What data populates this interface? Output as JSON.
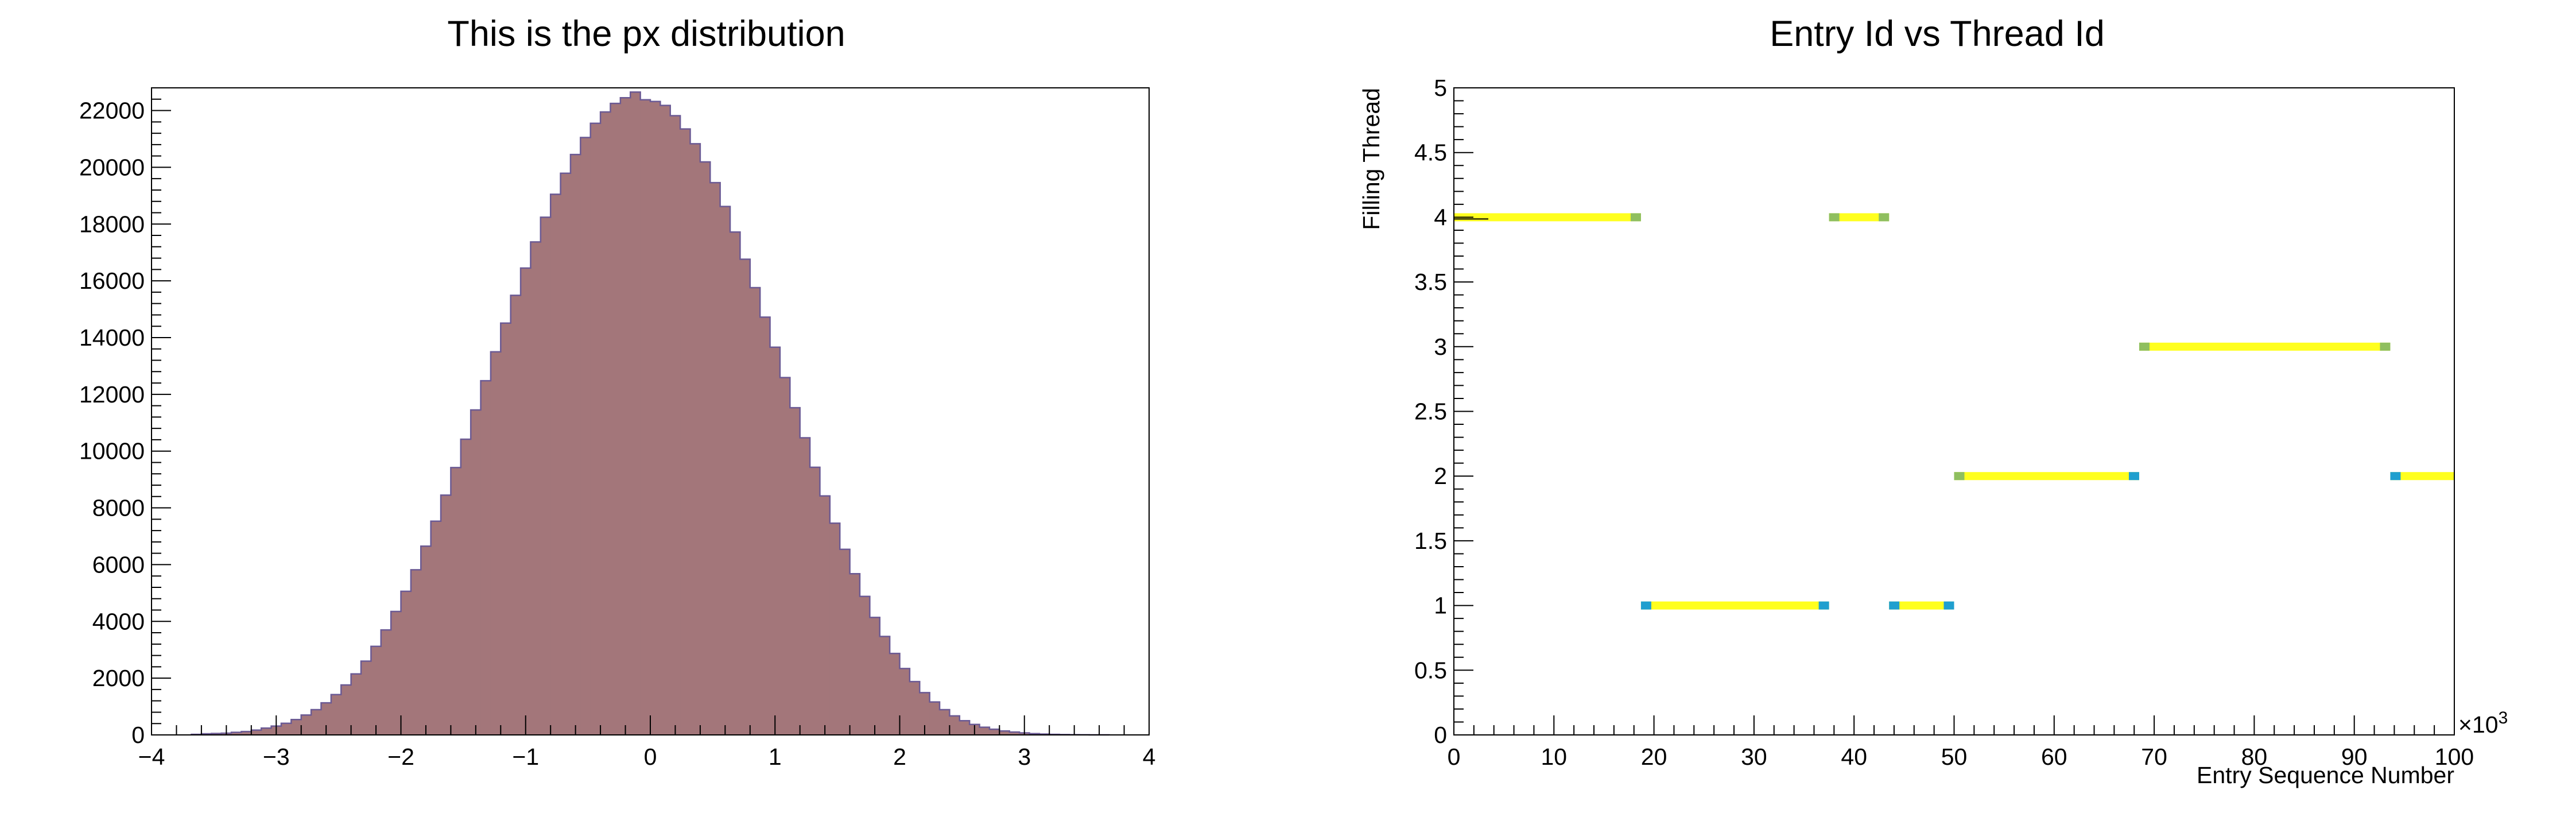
{
  "charts": [
    {
      "title": "This is the px distribution",
      "xticks": [
        "−4",
        "−3",
        "−2",
        "−1",
        "0",
        "1",
        "2",
        "3",
        "4"
      ],
      "yticks": [
        "0",
        "2000",
        "4000",
        "6000",
        "8000",
        "10000",
        "12000",
        "14000",
        "16000",
        "18000",
        "20000",
        "22000"
      ]
    },
    {
      "title": "Entry Id vs Thread Id",
      "xlabel": "Entry Sequence Number",
      "ylabel": "Filling Thread",
      "xticks": [
        "0",
        "10",
        "20",
        "30",
        "40",
        "50",
        "60",
        "70",
        "80",
        "90",
        "100"
      ],
      "yticks": [
        "0",
        "0.5",
        "1",
        "1.5",
        "2",
        "2.5",
        "3",
        "3.5",
        "4",
        "4.5",
        "5"
      ],
      "xexp_base": "×10",
      "xexp_power": "3"
    }
  ],
  "colors": {
    "hist_fill": "#a3767a",
    "hist_line": "#6b5a94",
    "seg_fill": "#ffff1f",
    "seg_start_blue": "#1f9fcf",
    "seg_end_green": "#8fbf5f"
  },
  "chart_data": [
    {
      "type": "bar",
      "title": "This is the px distribution",
      "xlabel": "",
      "ylabel": "",
      "xlim": [
        -4,
        4
      ],
      "ylim": [
        0,
        22800
      ],
      "bins": 100,
      "x": [
        -3.68,
        -3.6,
        -3.52,
        -3.44,
        -3.36,
        -3.28,
        -3.2,
        -3.12,
        -3.04,
        -2.96,
        -2.88,
        -2.8,
        -2.72,
        -2.64,
        -2.56,
        -2.48,
        -2.4,
        -2.32,
        -2.24,
        -2.16,
        -2.08,
        -2.0,
        -1.92,
        -1.84,
        -1.76,
        -1.68,
        -1.6,
        -1.52,
        -1.44,
        -1.36,
        -1.28,
        -1.2,
        -1.12,
        -1.04,
        -0.96,
        -0.88,
        -0.8,
        -0.72,
        -0.64,
        -0.56,
        -0.48,
        -0.4,
        -0.32,
        -0.24,
        -0.16,
        -0.08,
        0.0,
        0.08,
        0.16,
        0.24,
        0.32,
        0.4,
        0.48,
        0.56,
        0.64,
        0.72,
        0.8,
        0.88,
        0.96,
        1.04,
        1.12,
        1.2,
        1.28,
        1.36,
        1.44,
        1.52,
        1.6,
        1.68,
        1.76,
        1.84,
        1.92,
        2.0,
        2.08,
        2.16,
        2.24,
        2.32,
        2.4,
        2.48,
        2.56,
        2.64,
        2.72,
        2.8,
        2.88,
        2.96,
        3.04,
        3.12,
        3.2,
        3.28,
        3.36,
        3.44,
        3.52,
        3.6
      ],
      "values": [
        20,
        40,
        50,
        60,
        90,
        120,
        170,
        240,
        310,
        410,
        540,
        700,
        890,
        1130,
        1420,
        1760,
        2150,
        2600,
        3120,
        3700,
        4350,
        5060,
        5820,
        6650,
        7530,
        8450,
        9420,
        10420,
        11450,
        12480,
        13500,
        14510,
        15490,
        16450,
        17370,
        18240,
        19050,
        19790,
        20450,
        21050,
        21550,
        21950,
        22250,
        22450,
        22650,
        22380,
        22320,
        22180,
        21820,
        21350,
        20830,
        20190,
        19460,
        18620,
        17720,
        16760,
        15760,
        14720,
        13660,
        12590,
        11530,
        10470,
        9430,
        8420,
        7460,
        6540,
        5680,
        4880,
        4140,
        3470,
        2870,
        2340,
        1880,
        1490,
        1160,
        890,
        670,
        500,
        370,
        270,
        200,
        140,
        100,
        70,
        45,
        30,
        20,
        12,
        8,
        5,
        3,
        2
      ]
    },
    {
      "type": "scatter",
      "title": "Entry Id vs Thread Id",
      "xlabel": "Entry Sequence Number",
      "ylabel": "Filling Thread",
      "xlim": [
        0,
        100000
      ],
      "ylim": [
        0,
        5
      ],
      "x_multiplier": "×10^3",
      "series": [
        {
          "thread": 4,
          "x_start": 0,
          "x_end": 18700
        },
        {
          "thread": 1,
          "x_start": 18700,
          "x_end": 37500
        },
        {
          "thread": 4,
          "x_start": 37500,
          "x_end": 43500
        },
        {
          "thread": 1,
          "x_start": 43500,
          "x_end": 50000
        },
        {
          "thread": 2,
          "x_start": 50000,
          "x_end": 68500
        },
        {
          "thread": 3,
          "x_start": 68500,
          "x_end": 93600
        },
        {
          "thread": 2,
          "x_start": 93600,
          "x_end": 100000
        }
      ]
    }
  ]
}
